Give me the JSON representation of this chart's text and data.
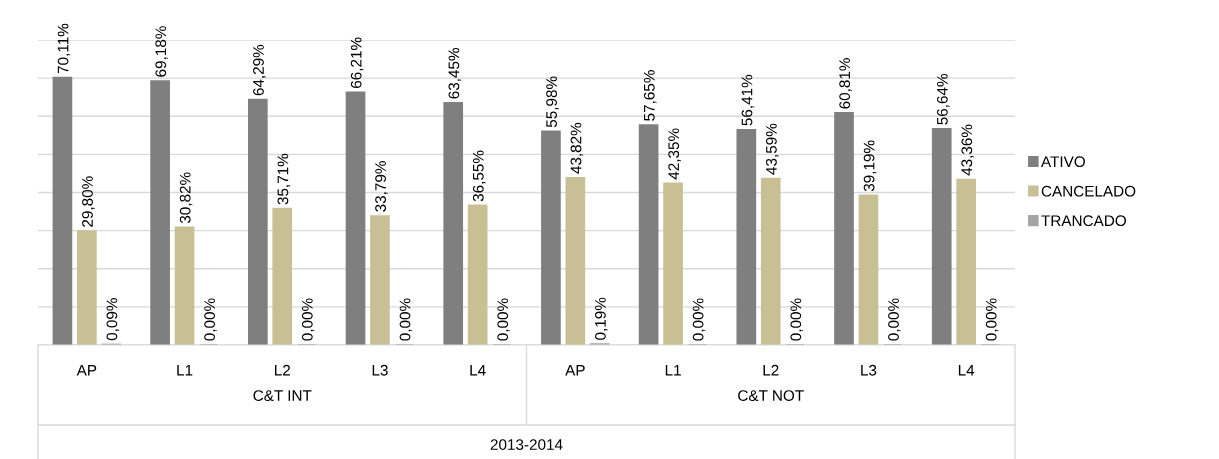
{
  "chart_data": {
    "type": "bar",
    "categories": [
      "AP",
      "L1",
      "L2",
      "L3",
      "L4",
      "AP",
      "L1",
      "L2",
      "L3",
      "L4"
    ],
    "series": [
      {
        "name": "ATIVO",
        "color": "#7f7f7f",
        "values": [
          70.11,
          69.18,
          64.29,
          66.21,
          63.45,
          55.98,
          57.65,
          56.41,
          60.81,
          56.64
        ],
        "value_labels": [
          "70,11%",
          "69,18%",
          "64,29%",
          "66,21%",
          "63,45%",
          "55,98%",
          "57,65%",
          "56,41%",
          "60,81%",
          "56,64%"
        ]
      },
      {
        "name": "CANCELADO",
        "color": "#c9bf95",
        "values": [
          29.8,
          30.82,
          35.71,
          33.79,
          36.55,
          43.82,
          42.35,
          43.59,
          39.19,
          43.36
        ],
        "value_labels": [
          "29,80%",
          "30,82%",
          "35,71%",
          "33,79%",
          "36,55%",
          "43,82%",
          "42,35%",
          "43,59%",
          "39,19%",
          "43,36%"
        ]
      },
      {
        "name": "TRANCADO",
        "color": "#a5a5a5",
        "values": [
          0.09,
          0,
          0,
          0,
          0,
          0.19,
          0,
          0,
          0,
          0
        ],
        "value_labels": [
          "0,09%",
          "0,00%",
          "0,00%",
          "0,00%",
          "0,00%",
          "0,19%",
          "0,00%",
          "0,00%",
          "0,00%",
          "0,00%"
        ]
      }
    ],
    "ylim": [
      0,
      80
    ],
    "yticks": [
      {
        "value": 0,
        "label": null
      },
      {
        "value": 10,
        "label": null
      },
      {
        "value": 20,
        "label": null
      },
      {
        "value": 30,
        "label": null
      },
      {
        "value": 40,
        "label": null
      },
      {
        "value": 50,
        "label": null
      },
      {
        "value": 60,
        "label": null
      },
      {
        "value": 70,
        "label": null
      },
      {
        "value": 80,
        "label": null
      }
    ],
    "tick_labels": "x",
    "grid": "y",
    "legend": "right",
    "annotations": [
      "C&T INT",
      "C&T NOT",
      "2013-2014"
    ]
  }
}
